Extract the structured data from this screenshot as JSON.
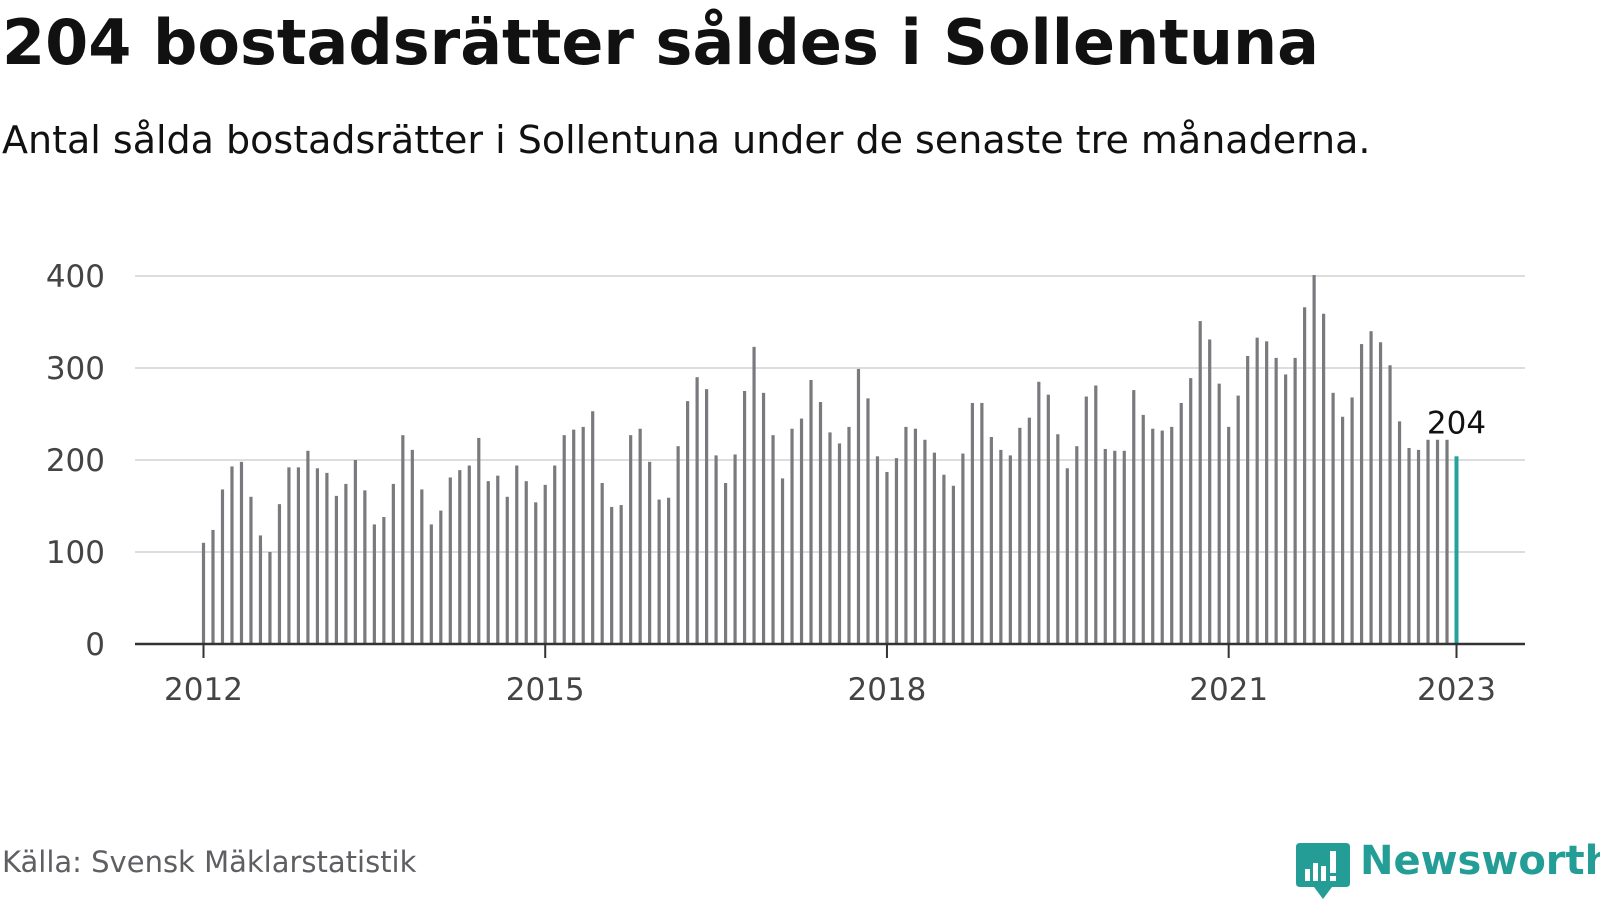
{
  "title": "204 bostadsrätter såldes i Sollentuna",
  "subtitle": "Antal sålda bostadsrätter i Sollentuna under de senaste tre månaderna.",
  "source": "Källa: Svensk Mäklarstatistik",
  "brand": "Newsworthy",
  "colors": {
    "bar": "#7a7a7e",
    "highlight": "#26a19b",
    "brand": "#249d97",
    "grid": "#dddddd",
    "axis": "#333333"
  },
  "chart_data": {
    "type": "bar",
    "title": "204 bostadsrätter såldes i Sollentuna",
    "subtitle": "Antal sålda bostadsrätter i Sollentuna under de senaste tre månaderna.",
    "xlabel": "",
    "ylabel": "",
    "ylim": [
      0,
      400
    ],
    "y_ticks": [
      0,
      100,
      200,
      300,
      400
    ],
    "x_ticks": [
      "2012",
      "2015",
      "2018",
      "2021",
      "2023"
    ],
    "grid": true,
    "start": "2012-01",
    "end": "2023-01",
    "frequency": "monthly",
    "values": [
      110,
      124,
      168,
      193,
      198,
      160,
      118,
      100,
      152,
      192,
      192,
      210,
      191,
      186,
      161,
      174,
      200,
      167,
      130,
      138,
      174,
      227,
      211,
      168,
      130,
      145,
      181,
      189,
      194,
      224,
      177,
      183,
      160,
      194,
      177,
      154,
      173,
      194,
      227,
      233,
      236,
      253,
      175,
      149,
      151,
      227,
      234,
      198,
      157,
      159,
      215,
      264,
      290,
      277,
      205,
      175,
      206,
      275,
      323,
      273,
      227,
      180,
      234,
      245,
      287,
      263,
      230,
      218,
      236,
      299,
      267,
      204,
      187,
      202,
      236,
      234,
      222,
      208,
      184,
      172,
      207,
      262,
      262,
      225,
      211,
      205,
      235,
      246,
      285,
      271,
      228,
      191,
      215,
      269,
      281,
      212,
      210,
      210,
      276,
      249,
      234,
      232,
      236,
      262,
      289,
      351,
      331,
      283,
      236,
      270,
      313,
      333,
      329,
      311,
      293,
      311,
      366,
      401,
      359,
      273,
      247,
      268,
      326,
      340,
      328,
      303,
      242,
      213,
      211,
      222,
      222,
      222,
      204
    ],
    "highlight_last": true,
    "last_value_label": "204"
  }
}
